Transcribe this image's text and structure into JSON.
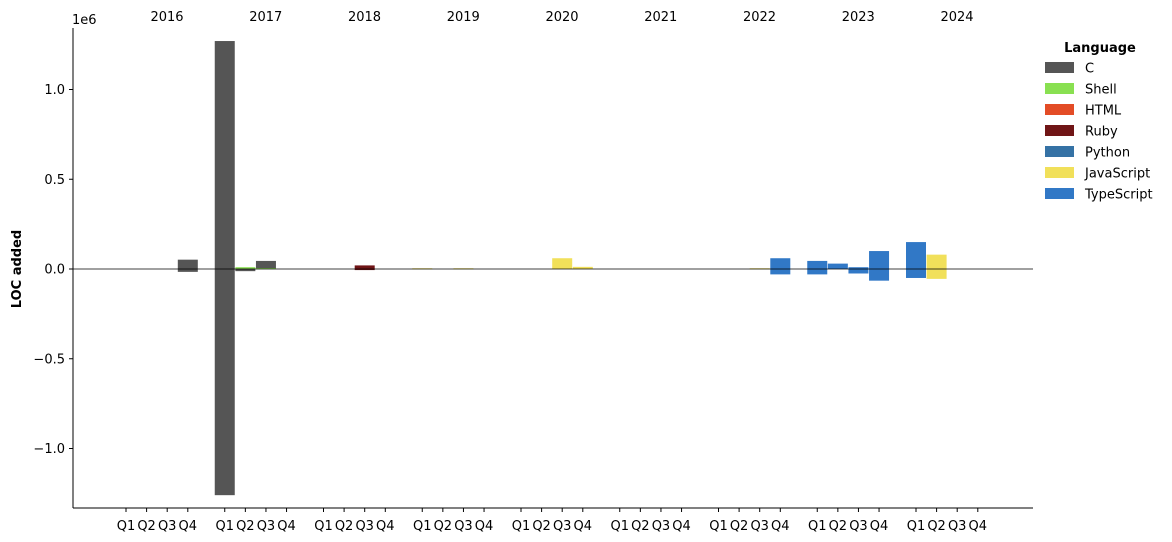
{
  "chart_data": {
    "type": "bar",
    "ylabel": "LOC added",
    "y_scale_label": "1e6",
    "ylim": [
      -1.34,
      1.34
    ],
    "yticks": [
      -1.0,
      -0.5,
      0.0,
      0.5,
      1.0
    ],
    "ytick_labels": [
      "−1.0",
      "−0.5",
      "0.0",
      "0.5",
      "1.0"
    ],
    "years": [
      "2016",
      "2017",
      "2018",
      "2019",
      "2020",
      "2021",
      "2022",
      "2023",
      "2024"
    ],
    "quarter_labels": [
      "Q1",
      "Q2",
      "Q3",
      "Q4"
    ],
    "legend": {
      "title": "Language",
      "placement": "top-right, outside plot",
      "items": [
        {
          "name": "C",
          "color": "#555555"
        },
        {
          "name": "Shell",
          "color": "#89e051"
        },
        {
          "name": "HTML",
          "color": "#e34c26"
        },
        {
          "name": "Ruby",
          "color": "#701516"
        },
        {
          "name": "Python",
          "color": "#3572a5"
        },
        {
          "name": "JavaScript",
          "color": "#f1e05a"
        },
        {
          "name": "TypeScript",
          "color": "#3178c6"
        }
      ]
    },
    "bars": [
      {
        "period": "2016 Q4",
        "language": "C",
        "added": 0.052,
        "removed": -0.016
      },
      {
        "period": "2017 Q1",
        "language": "C",
        "added": 1.27,
        "removed": -1.26
      },
      {
        "period": "2017 Q2",
        "language": "C",
        "added": 0.0,
        "removed": -0.012
      },
      {
        "period": "2017 Q2",
        "language": "Shell",
        "added": 0.01,
        "removed": 0.0
      },
      {
        "period": "2017 Q3",
        "language": "C",
        "added": 0.045,
        "removed": 0.0
      },
      {
        "period": "2017 Q3",
        "language": "Shell",
        "added": 0.005,
        "removed": 0.0
      },
      {
        "period": "2018 Q3",
        "language": "Ruby",
        "added": 0.02,
        "removed": -0.006
      },
      {
        "period": "2019 Q1",
        "language": "JavaScript",
        "added": 0.004,
        "removed": 0.0
      },
      {
        "period": "2019 Q3",
        "language": "JavaScript",
        "added": 0.004,
        "removed": 0.0
      },
      {
        "period": "2020 Q3",
        "language": "JavaScript",
        "added": 0.06,
        "removed": 0.0
      },
      {
        "period": "2020 Q4",
        "language": "JavaScript",
        "added": 0.012,
        "removed": 0.0
      },
      {
        "period": "2022 Q3",
        "language": "JavaScript",
        "added": 0.004,
        "removed": 0.0
      },
      {
        "period": "2022 Q4",
        "language": "TypeScript",
        "added": 0.06,
        "removed": -0.03
      },
      {
        "period": "2023 Q1",
        "language": "TypeScript",
        "added": 0.045,
        "removed": -0.03
      },
      {
        "period": "2023 Q2",
        "language": "TypeScript",
        "added": 0.03,
        "removed": 0.0
      },
      {
        "period": "2023 Q3",
        "language": "TypeScript",
        "added": 0.01,
        "removed": -0.025
      },
      {
        "period": "2023 Q4",
        "language": "TypeScript",
        "added": 0.1,
        "removed": -0.065
      },
      {
        "period": "2024 Q1",
        "language": "JavaScript",
        "added": 0.065,
        "removed": -0.03
      },
      {
        "period": "2024 Q1",
        "language": "TypeScript",
        "added": 0.15,
        "removed": -0.05
      },
      {
        "period": "2024 Q2",
        "language": "JavaScript",
        "added": 0.08,
        "removed": -0.055
      }
    ]
  }
}
